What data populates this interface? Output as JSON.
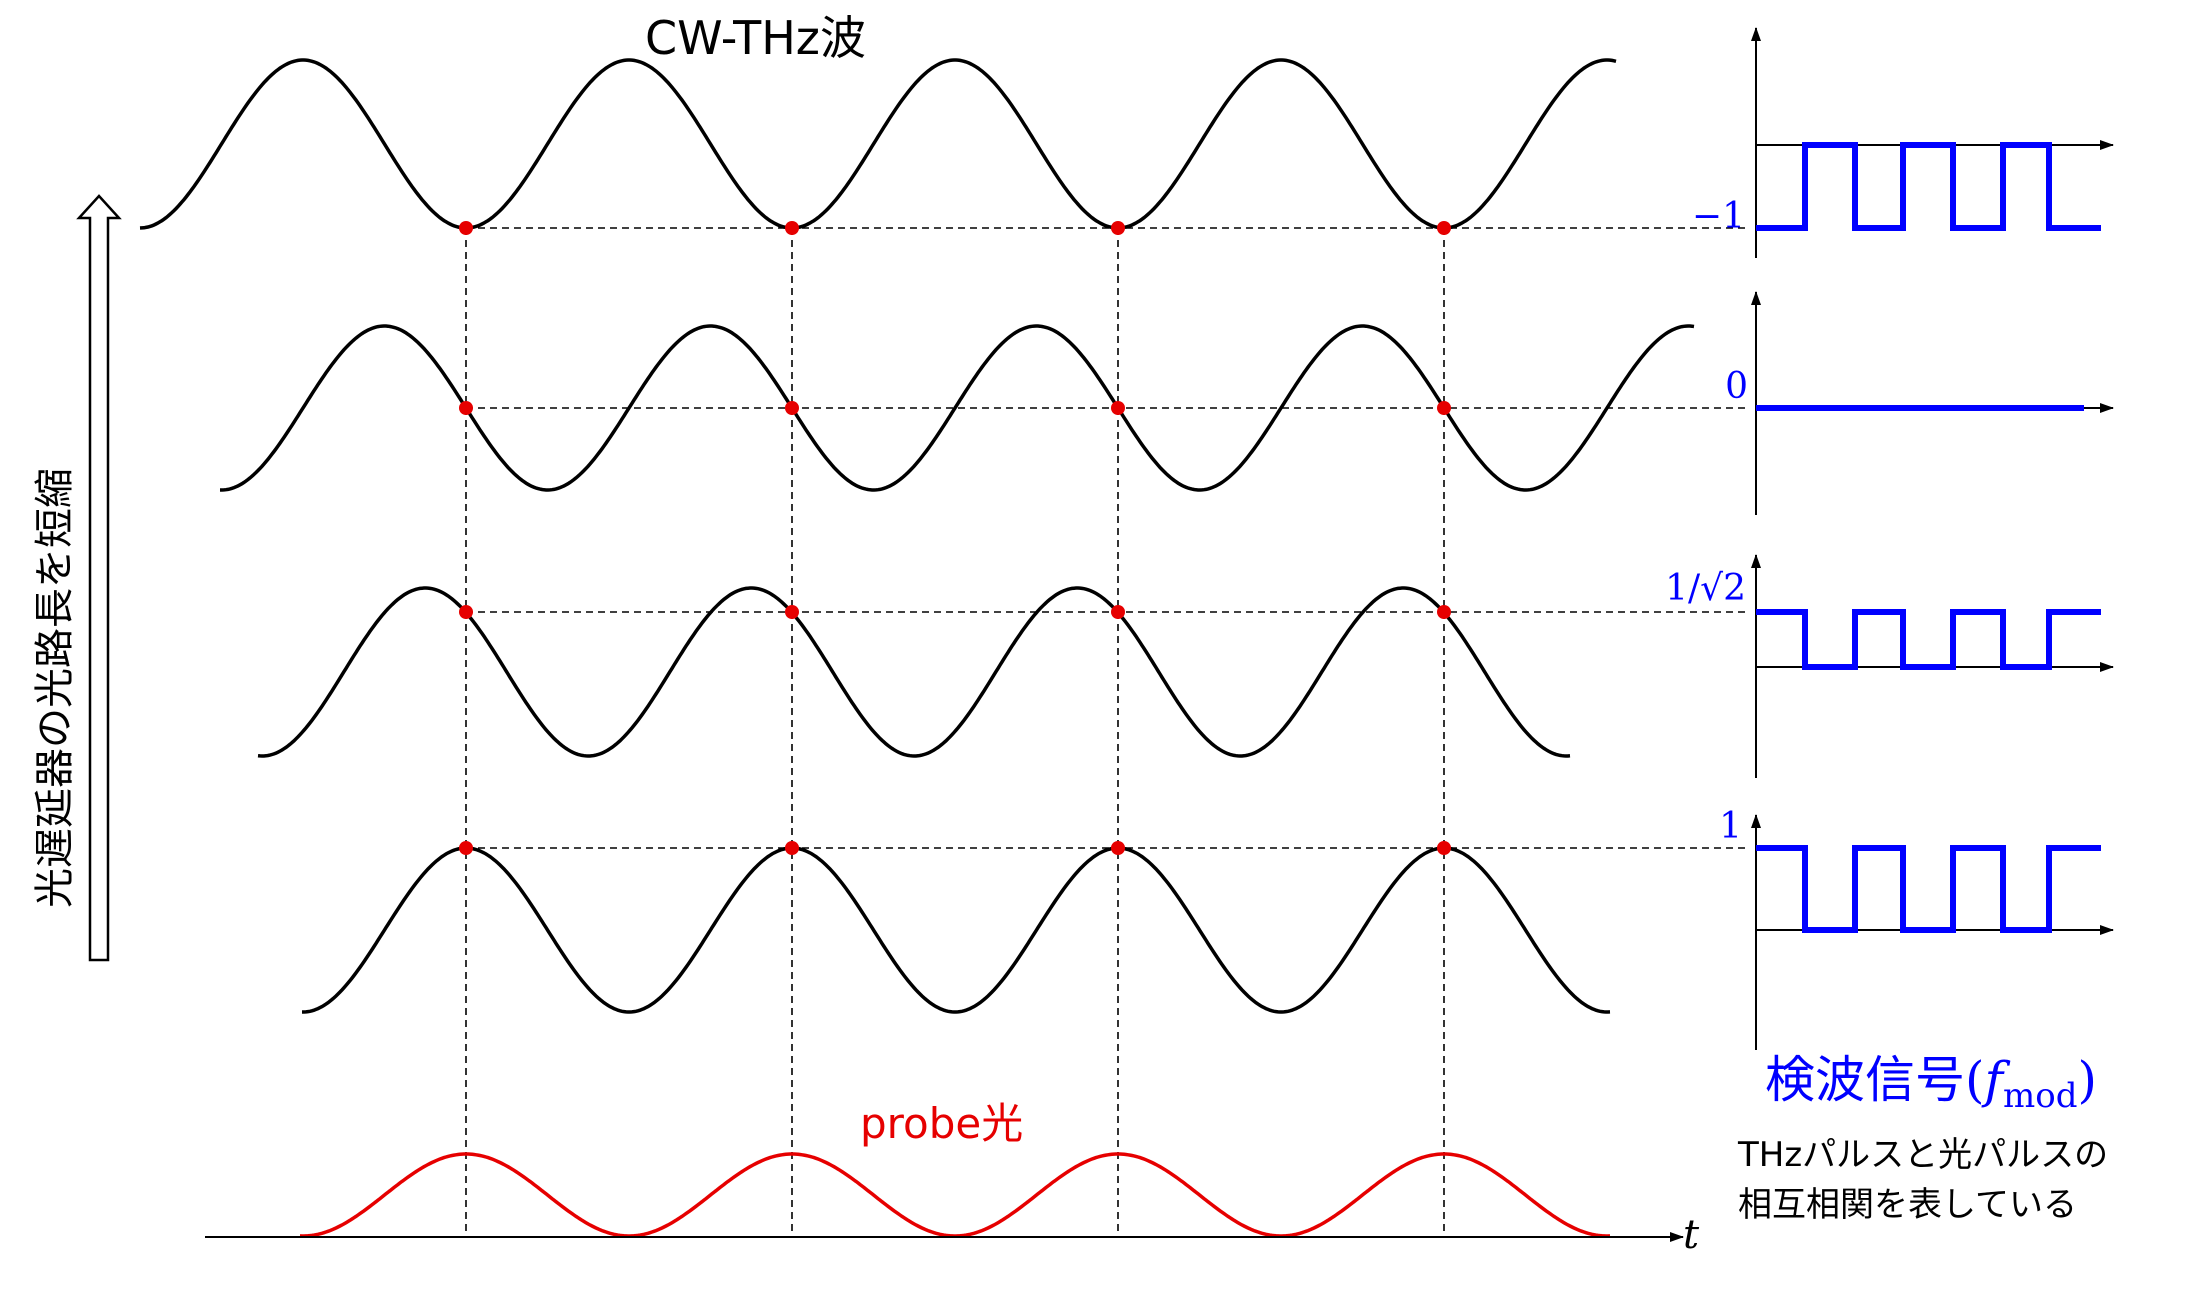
{
  "title": "CW-THz波",
  "probe_label": "probe光",
  "time_axis_label": "t",
  "side_label": "光遅延器の光路長を短縮",
  "detection": {
    "title_main": "検波信号",
    "title_open": "(",
    "title_f": "f",
    "title_sub": "mod",
    "title_close": ")",
    "note_line1": "THzパルスと光パルスの",
    "note_line2": "相互相関を表している"
  },
  "signal_levels": [
    "−1",
    "0",
    "1/√2",
    "1"
  ],
  "colors": {
    "wave": "#000000",
    "probe": "#e60000",
    "signal": "#0000ff",
    "sample_point": "#e60000"
  }
}
